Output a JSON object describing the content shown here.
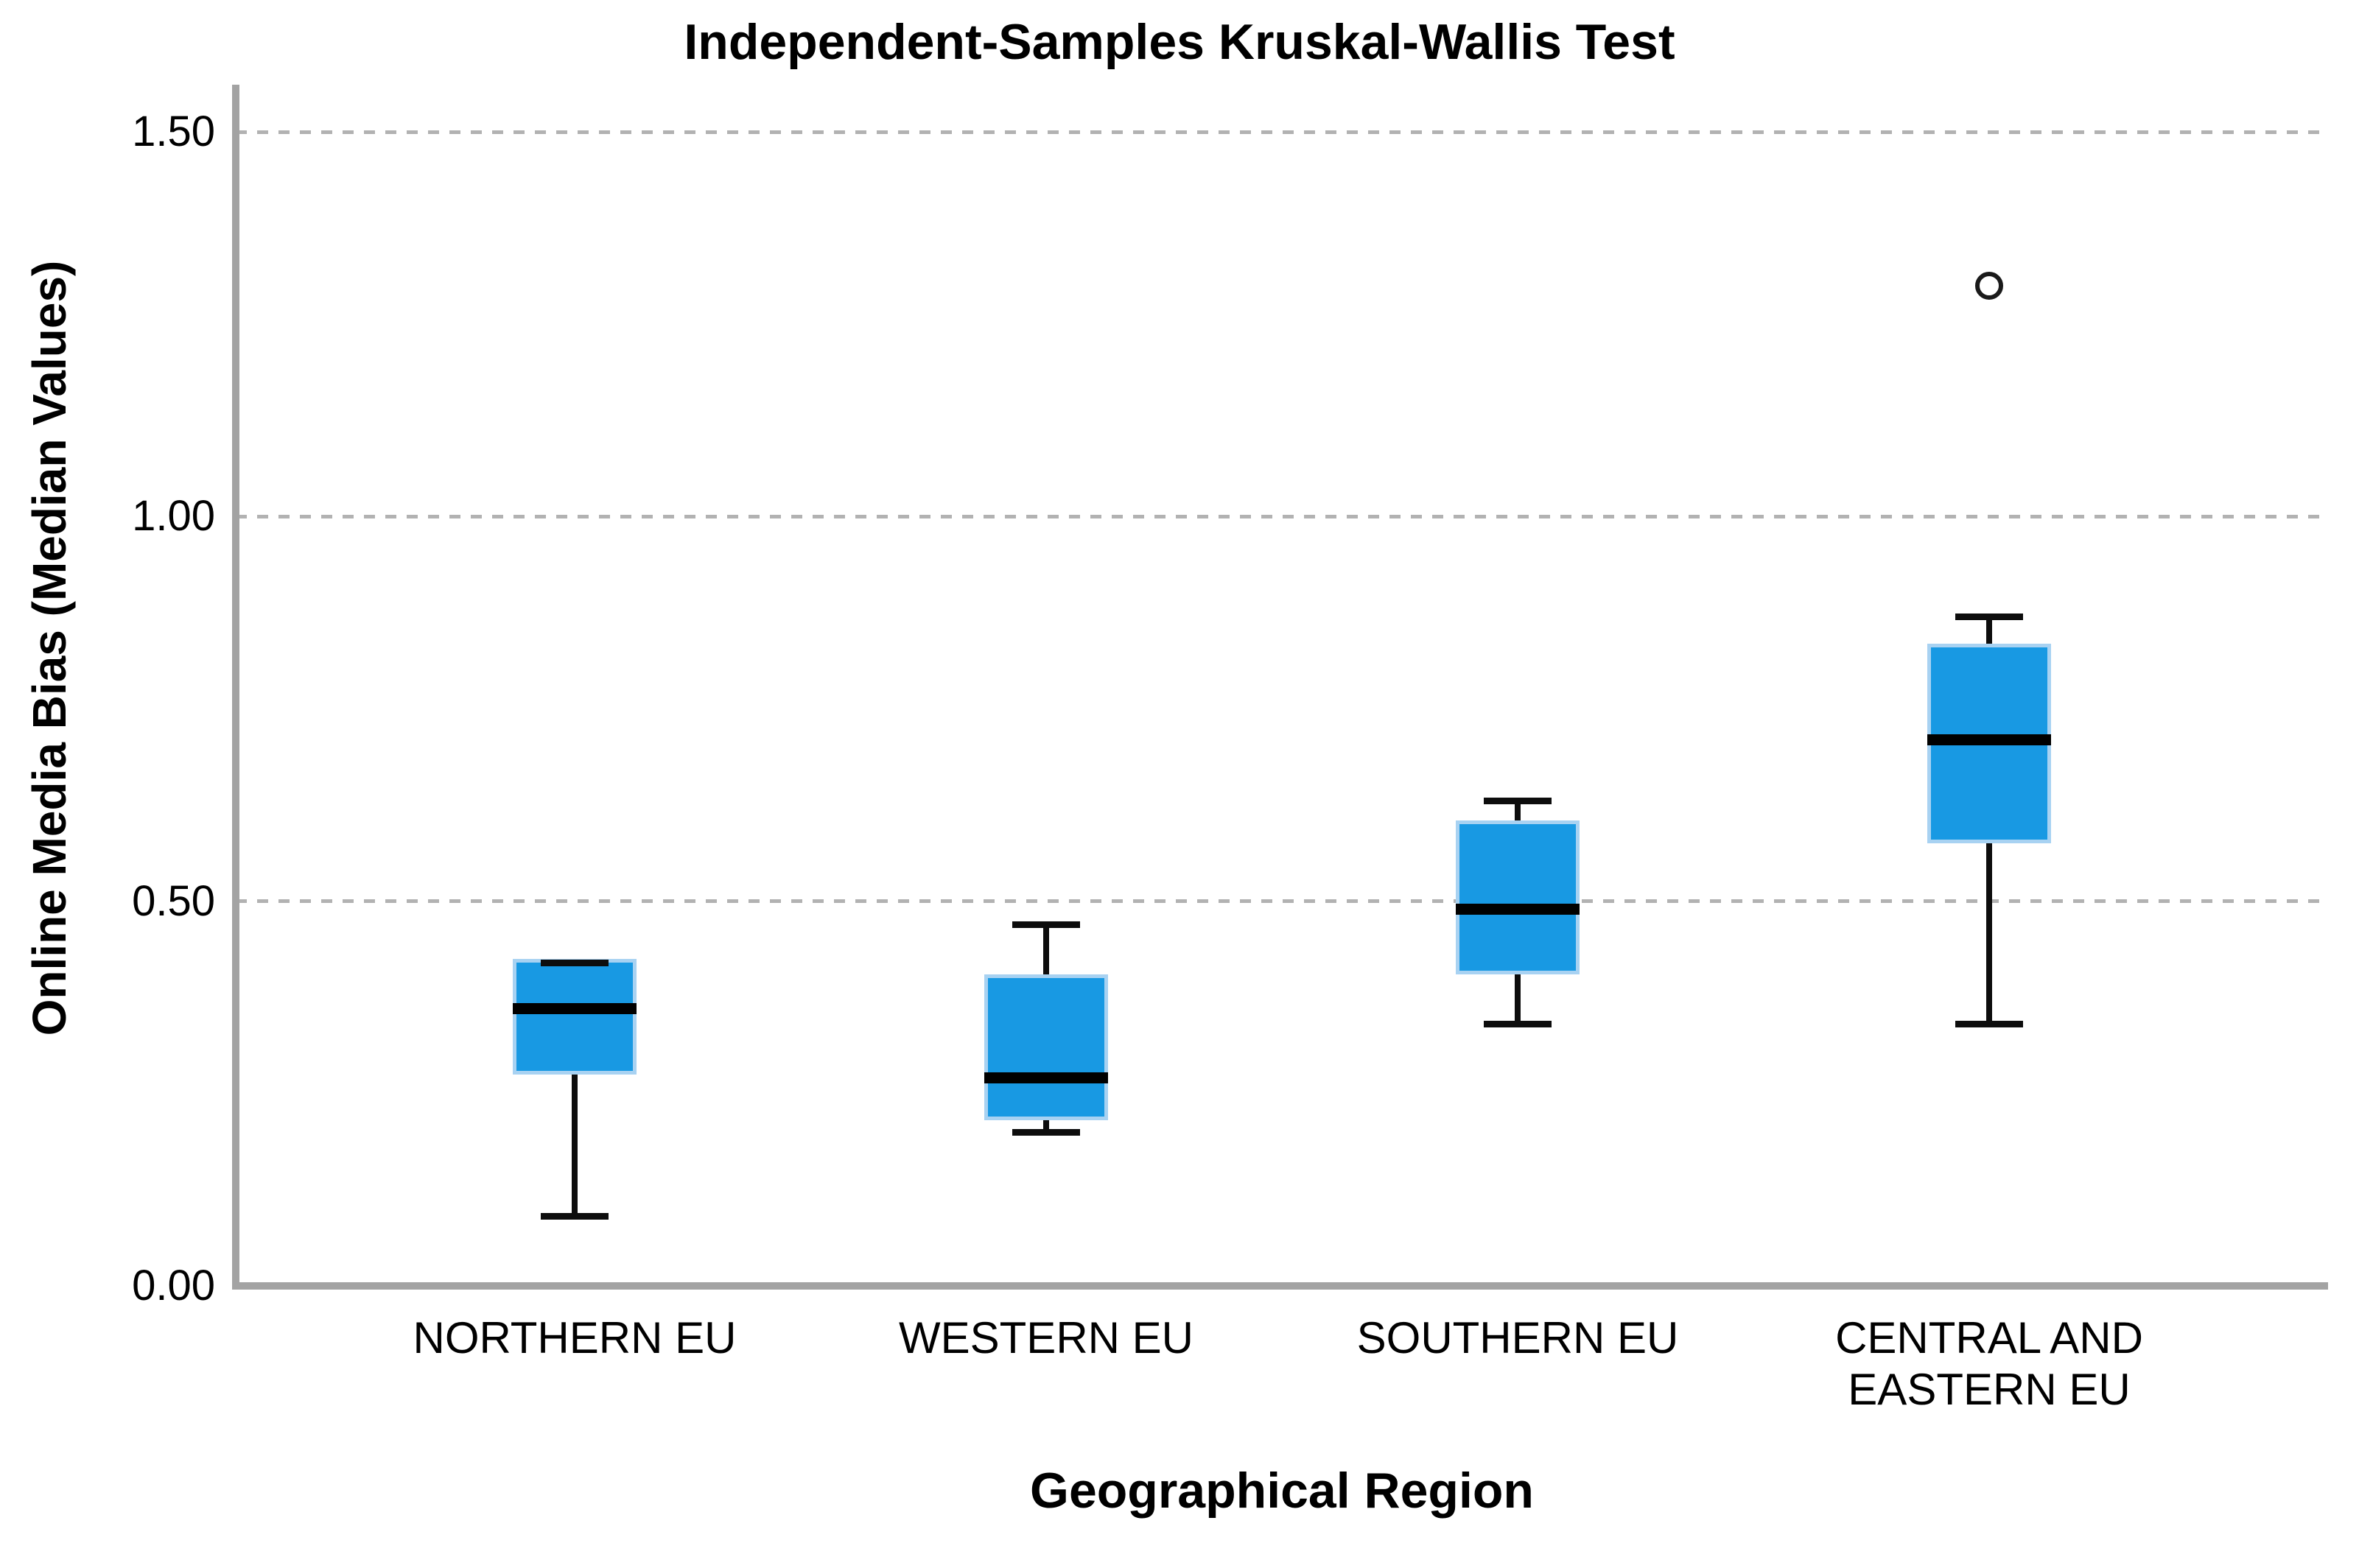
{
  "title": "Independent-Samples Kruskal-Wallis Test",
  "y_axis": {
    "label": "Online Media Bias (Median Values)",
    "ticks": [
      {
        "label": "1.50",
        "value": 1.5
      },
      {
        "label": "1.00",
        "value": 1.0
      },
      {
        "label": "0.50",
        "value": 0.5
      },
      {
        "label": "0.00",
        "value": 0.0
      }
    ]
  },
  "x_axis": {
    "label": "Geographical Region"
  },
  "chart_data": {
    "type": "boxplot",
    "title": "Independent-Samples Kruskal-Wallis Test",
    "xlabel": "Geographical Region",
    "ylabel": "Online Media Bias (Median Values)",
    "ylim": [
      0,
      1.56
    ],
    "grid": "horizontal dashed gridlines at 0.50, 1.00, 1.50",
    "legend": "none",
    "categories": [
      "NORTHERN EU",
      "WESTERN EU",
      "SOUTHERN EU",
      "CENTRAL AND EASTERN EU"
    ],
    "series": [
      {
        "name": "NORTHERN EU",
        "min": 0.09,
        "q1": 0.28,
        "median": 0.36,
        "q3": 0.42,
        "max": 0.42,
        "outliers": []
      },
      {
        "name": "WESTERN EU",
        "min": 0.2,
        "q1": 0.22,
        "median": 0.27,
        "q3": 0.4,
        "max": 0.47,
        "outliers": []
      },
      {
        "name": "SOUTHERN EU",
        "min": 0.34,
        "q1": 0.41,
        "median": 0.49,
        "q3": 0.6,
        "max": 0.63,
        "outliers": []
      },
      {
        "name": "CENTRAL AND EASTERN EU",
        "min": 0.34,
        "q1": 0.58,
        "median": 0.71,
        "q3": 0.83,
        "max": 0.87,
        "outliers": [
          1.3
        ]
      }
    ],
    "colors": {
      "box_fill": "#1899e3",
      "box_border": "#a8d2f2",
      "whisker": "#0d0d0d",
      "median": "#000000",
      "axis_line": "#a3a3a3",
      "gridline": "#b2b2b2",
      "background": "#ffffff",
      "text": "#000000"
    }
  }
}
